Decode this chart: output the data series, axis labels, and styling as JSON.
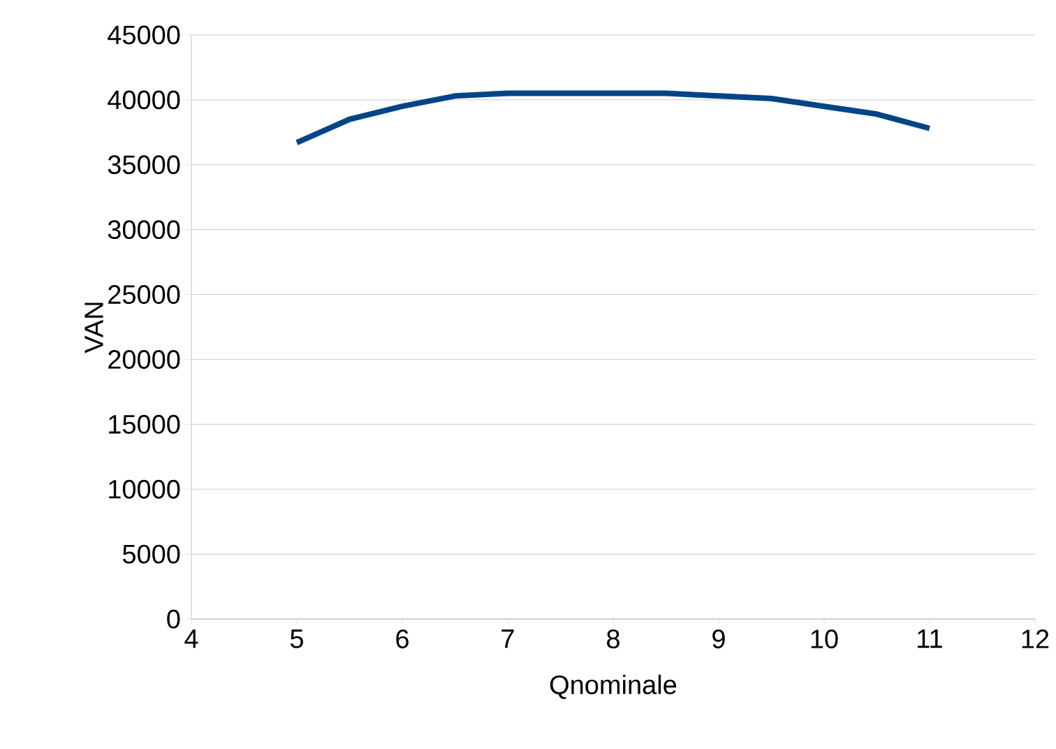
{
  "chart_data": {
    "type": "line",
    "xlabel": "Qnominale",
    "ylabel": "VAN",
    "x": [
      5,
      5.5,
      6,
      6.5,
      7,
      7.5,
      8,
      8.5,
      9,
      9.5,
      10,
      10.5,
      11
    ],
    "series": [
      {
        "color": "#004586",
        "values": [
          36700,
          38500,
          39500,
          40300,
          40500,
          40500,
          40500,
          40500,
          40300,
          40100,
          39500,
          38900,
          37800
        ]
      }
    ],
    "xlim": [
      4,
      12
    ],
    "xticks": [
      4,
      5,
      6,
      7,
      8,
      9,
      10,
      11,
      12
    ],
    "ylim": [
      0,
      45000
    ],
    "yticks": [
      0,
      5000,
      10000,
      15000,
      20000,
      25000,
      30000,
      35000,
      40000,
      45000
    ],
    "grid": "y",
    "marker": "none",
    "line_style": "solid"
  }
}
